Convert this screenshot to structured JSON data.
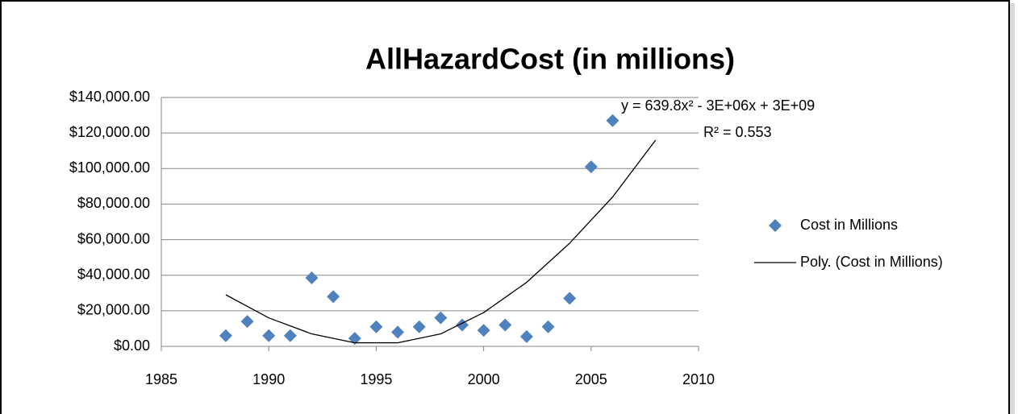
{
  "chart_data": {
    "type": "scatter",
    "title": "AllHazardCost (in millions)",
    "annotations": [
      "y = 639.8x² - 3E+06x + 3E+09",
      "R² = 0.553"
    ],
    "series": [
      {
        "name": "Cost in Millions",
        "type": "scatter",
        "color": "#4f81bd",
        "x": [
          1988,
          1989,
          1990,
          1991,
          1992,
          1993,
          1994,
          1995,
          1996,
          1997,
          1998,
          1999,
          2000,
          2001,
          2002,
          2003,
          2004,
          2005,
          2006
        ],
        "values": [
          6000,
          14000,
          6000,
          6000,
          38500,
          28000,
          4500,
          11000,
          8000,
          11000,
          16000,
          12000,
          9000,
          12000,
          5500,
          11000,
          27000,
          101000,
          127000
        ]
      },
      {
        "name": "Poly. (Cost in Millions)",
        "type": "line",
        "color": "#000000",
        "x": [
          1988,
          1990,
          1992,
          1994,
          1996,
          1998,
          2000,
          2002,
          2004,
          2006,
          2008
        ],
        "values": [
          29000,
          16000,
          7000,
          2000,
          2000,
          7000,
          19000,
          36000,
          58000,
          84000,
          116000
        ]
      }
    ],
    "xlim": [
      1985,
      2010
    ],
    "xticks": [
      1985,
      1990,
      1995,
      2000,
      2005,
      2010
    ],
    "ylim": [
      0,
      140000
    ],
    "yticks": [
      {
        "value": 0,
        "label": "$0.00"
      },
      {
        "value": 20000,
        "label": "$20,000.00"
      },
      {
        "value": 40000,
        "label": "$40,000.00"
      },
      {
        "value": 60000,
        "label": "$60,000.00"
      },
      {
        "value": 80000,
        "label": "$80,000.00"
      },
      {
        "value": 100000,
        "label": "$100,000.00"
      },
      {
        "value": 120000,
        "label": "$120,000.00"
      },
      {
        "value": 140000,
        "label": "$140,000.00"
      }
    ],
    "grid": true,
    "legend": "right"
  }
}
